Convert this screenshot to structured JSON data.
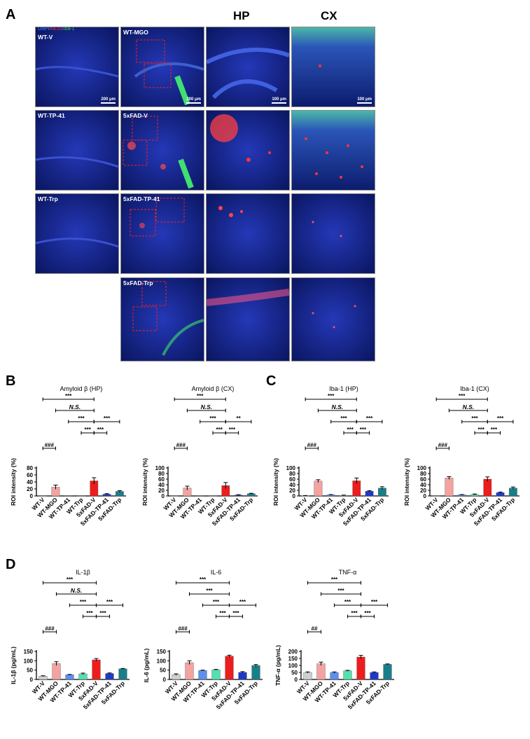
{
  "panel_letters": {
    "a": "A",
    "b": "B",
    "c": "C",
    "d": "D"
  },
  "column_headers": {
    "hp": "HP",
    "cx": "CX"
  },
  "stain_legend": [
    {
      "text": "DAPI",
      "color": "#4a7cff"
    },
    {
      "text": "/",
      "color": "#4a7cff"
    },
    {
      "text": "6E10",
      "color": "#ff3030"
    },
    {
      "text": "/",
      "color": "#4a7cff"
    },
    {
      "text": "Iba-1",
      "color": "#35d14b"
    }
  ],
  "micrographs": {
    "wt_v": "WT-V",
    "wt_mgo": "WT-MGO",
    "wt_tp41": "WT-TP-41",
    "fxad_v": "5xFAD-V",
    "wt_trp": "WT-Trp",
    "fxad_tp41": "5xFAD-TP-41",
    "fxad_trp": "5xFAD-Trp",
    "scale_200": "200 μm",
    "scale_100": "100 μm"
  },
  "chart_data": [
    {
      "id": "b1",
      "type": "bar",
      "title": "Amyloid β (HP)",
      "ylabel": "ROI intensity (%)",
      "categories": [
        "WT-V",
        "WT-MGO",
        "WT-TP-41",
        "WT-Trp",
        "5xFAD-V",
        "5xFAD-TP-41",
        "5xFAD-Trp"
      ],
      "values": [
        0,
        25,
        0,
        0,
        43,
        5,
        13
      ],
      "errors": [
        0,
        6,
        0,
        0,
        9,
        1.5,
        2
      ],
      "ylim": [
        0,
        80
      ],
      "yticks": [
        0,
        20,
        40,
        60,
        80
      ],
      "colors": [
        "#cfcfcf",
        "#f4a3a0",
        "#5b8ff0",
        "#55e0b0",
        "#ee1c1c",
        "#1e38c9",
        "#177f8a"
      ],
      "significance": [
        {
          "from": 0,
          "to": 4,
          "text": "***"
        },
        {
          "from": 1,
          "to": 4,
          "text": "N.S."
        },
        {
          "from": 2,
          "to": 4,
          "text": "***"
        },
        {
          "from": 4,
          "to": 6,
          "text": "***"
        },
        {
          "from": 3,
          "to": 4,
          "text": "***"
        },
        {
          "from": 4,
          "to": 5,
          "text": "***"
        },
        {
          "from": 0,
          "to": 1,
          "text": "###"
        }
      ]
    },
    {
      "id": "b2",
      "type": "bar",
      "title": "Amyloid β (CX)",
      "ylabel": "ROI intensity (%)",
      "categories": [
        "WT-V",
        "WT-MGO",
        "WT-TP-41",
        "WT-Trp",
        "5xFAD-V",
        "5xFAD-TP-41",
        "5xFAD-Trp"
      ],
      "values": [
        0,
        28,
        0,
        0,
        37,
        3,
        8
      ],
      "errors": [
        0,
        7,
        0,
        0,
        11,
        1.5,
        1.5
      ],
      "ylim": [
        0,
        100
      ],
      "yticks": [
        0,
        20,
        40,
        60,
        80,
        100
      ],
      "colors": [
        "#cfcfcf",
        "#f4a3a0",
        "#5b8ff0",
        "#55e0b0",
        "#ee1c1c",
        "#1e38c9",
        "#177f8a"
      ],
      "significance": [
        {
          "from": 0,
          "to": 4,
          "text": "***"
        },
        {
          "from": 1,
          "to": 4,
          "text": "N.S."
        },
        {
          "from": 2,
          "to": 4,
          "text": "***"
        },
        {
          "from": 4,
          "to": 6,
          "text": "**"
        },
        {
          "from": 3,
          "to": 4,
          "text": "***"
        },
        {
          "from": 4,
          "to": 5,
          "text": "***"
        },
        {
          "from": 0,
          "to": 1,
          "text": "###"
        }
      ]
    },
    {
      "id": "c1",
      "type": "bar",
      "title": "Iba-1 (HP)",
      "ylabel": "ROI intensity (%)",
      "categories": [
        "WT-V",
        "WT-MGO",
        "WT-TP-41",
        "WT-Trp",
        "5xFAD-V",
        "5xFAD-TP-41",
        "5xFAD-Trp"
      ],
      "values": [
        1,
        53,
        4,
        2,
        54,
        17,
        28
      ],
      "errors": [
        0.5,
        5,
        1,
        1,
        10,
        2,
        5
      ],
      "ylim": [
        0,
        100
      ],
      "yticks": [
        0,
        20,
        40,
        60,
        80,
        100
      ],
      "colors": [
        "#cfcfcf",
        "#f4a3a0",
        "#5b8ff0",
        "#55e0b0",
        "#ee1c1c",
        "#1e38c9",
        "#177f8a"
      ],
      "significance": [
        {
          "from": 0,
          "to": 4,
          "text": "***"
        },
        {
          "from": 1,
          "to": 4,
          "text": "N.S."
        },
        {
          "from": 2,
          "to": 4,
          "text": "***"
        },
        {
          "from": 4,
          "to": 6,
          "text": "***"
        },
        {
          "from": 3,
          "to": 4,
          "text": "***"
        },
        {
          "from": 4,
          "to": 5,
          "text": "***"
        },
        {
          "from": 0,
          "to": 1,
          "text": "###"
        }
      ]
    },
    {
      "id": "c2",
      "type": "bar",
      "title": "Iba-1 (CX)",
      "ylabel": "ROI intensity (%)",
      "categories": [
        "WT-V",
        "WT-MGO",
        "WT-TP-41",
        "WT-Trp",
        "5xFAD-V",
        "5xFAD-TP-41",
        "5xFAD-Trp"
      ],
      "values": [
        0,
        64,
        4,
        5,
        60,
        12,
        28
      ],
      "errors": [
        0,
        5,
        1,
        2,
        8,
        2,
        4
      ],
      "ylim": [
        0,
        100
      ],
      "yticks": [
        0,
        20,
        40,
        60,
        80,
        100
      ],
      "colors": [
        "#cfcfcf",
        "#f4a3a0",
        "#5b8ff0",
        "#55e0b0",
        "#ee1c1c",
        "#1e38c9",
        "#177f8a"
      ],
      "significance": [
        {
          "from": 0,
          "to": 4,
          "text": "***"
        },
        {
          "from": 1,
          "to": 4,
          "text": "N.S."
        },
        {
          "from": 2,
          "to": 4,
          "text": "***"
        },
        {
          "from": 4,
          "to": 6,
          "text": "***"
        },
        {
          "from": 3,
          "to": 4,
          "text": "***"
        },
        {
          "from": 4,
          "to": 5,
          "text": "***"
        },
        {
          "from": 0,
          "to": 1,
          "text": "###"
        }
      ]
    },
    {
      "id": "d1",
      "type": "bar",
      "title": "IL-1β",
      "ylabel": "IL-1β (pg/mL)",
      "categories": [
        "WT-V",
        "WT-MGO",
        "WT-TP-41",
        "WT-Trp",
        "5xFAD-V",
        "5xFAD-TP-41",
        "5xFAD-Trp"
      ],
      "values": [
        18,
        85,
        25,
        30,
        105,
        32,
        57
      ],
      "errors": [
        2,
        10,
        2,
        4,
        7,
        3,
        2
      ],
      "ylim": [
        0,
        150
      ],
      "yticks": [
        0,
        50,
        100,
        150
      ],
      "colors": [
        "#cfcfcf",
        "#f4a3a0",
        "#5b8ff0",
        "#55e0b0",
        "#ee1c1c",
        "#1e38c9",
        "#177f8a"
      ],
      "significance": [
        {
          "from": 0,
          "to": 4,
          "text": "***"
        },
        {
          "from": 1,
          "to": 4,
          "text": "N.S."
        },
        {
          "from": 2,
          "to": 4,
          "text": "***"
        },
        {
          "from": 4,
          "to": 6,
          "text": "***"
        },
        {
          "from": 3,
          "to": 4,
          "text": "***"
        },
        {
          "from": 4,
          "to": 5,
          "text": "***"
        },
        {
          "from": 0,
          "to": 1,
          "text": "###"
        }
      ]
    },
    {
      "id": "d2",
      "type": "bar",
      "title": "IL-6",
      "ylabel": "IL-6 (pg/mL)",
      "categories": [
        "WT-V",
        "WT-MGO",
        "WT-TP-41",
        "WT-Trp",
        "5xFAD-V",
        "5xFAD-TP-41",
        "5xFAD-Trp"
      ],
      "values": [
        26,
        90,
        48,
        52,
        125,
        38,
        75
      ],
      "errors": [
        4,
        10,
        2,
        2,
        5,
        4,
        5
      ],
      "ylim": [
        0,
        150
      ],
      "yticks": [
        0,
        50,
        100,
        150
      ],
      "colors": [
        "#cfcfcf",
        "#f4a3a0",
        "#5b8ff0",
        "#55e0b0",
        "#ee1c1c",
        "#1e38c9",
        "#177f8a"
      ],
      "significance": [
        {
          "from": 0,
          "to": 4,
          "text": "***"
        },
        {
          "from": 1,
          "to": 4,
          "text": "***"
        },
        {
          "from": 2,
          "to": 4,
          "text": "***"
        },
        {
          "from": 4,
          "to": 6,
          "text": "***"
        },
        {
          "from": 3,
          "to": 4,
          "text": "***"
        },
        {
          "from": 4,
          "to": 5,
          "text": "***"
        },
        {
          "from": 0,
          "to": 1,
          "text": "###"
        }
      ]
    },
    {
      "id": "d3",
      "type": "bar",
      "title": "TNF-α",
      "ylabel": "TNF-α (pg/mL)",
      "categories": [
        "WT-V",
        "WT-MGO",
        "WT-TP-41",
        "WT-Trp",
        "5xFAD-V",
        "5xFAD-TP-41",
        "5xFAD-Trp"
      ],
      "values": [
        50,
        112,
        50,
        62,
        160,
        50,
        108
      ],
      "errors": [
        4,
        12,
        4,
        3,
        12,
        4,
        3
      ],
      "ylim": [
        0,
        200
      ],
      "yticks": [
        0,
        50,
        100,
        150,
        200
      ],
      "colors": [
        "#cfcfcf",
        "#f4a3a0",
        "#5b8ff0",
        "#55e0b0",
        "#ee1c1c",
        "#1e38c9",
        "#177f8a"
      ],
      "significance": [
        {
          "from": 0,
          "to": 4,
          "text": "***"
        },
        {
          "from": 1,
          "to": 4,
          "text": "***"
        },
        {
          "from": 2,
          "to": 4,
          "text": "***"
        },
        {
          "from": 4,
          "to": 6,
          "text": "***"
        },
        {
          "from": 3,
          "to": 4,
          "text": "***"
        },
        {
          "from": 4,
          "to": 5,
          "text": "***"
        },
        {
          "from": 0,
          "to": 1,
          "text": "##"
        }
      ]
    }
  ]
}
